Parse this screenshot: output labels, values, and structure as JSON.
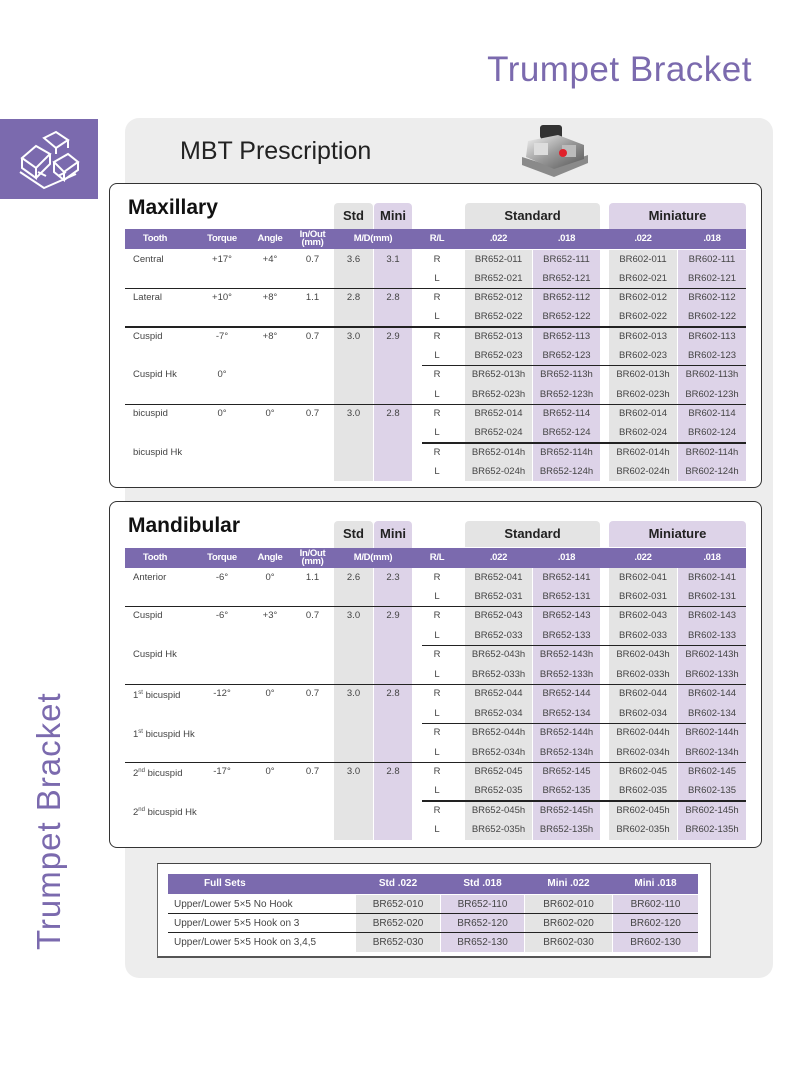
{
  "page_title": "Trumpet Bracket",
  "side_title": "Trumpet Bracket",
  "prescription_title": "MBT Prescription",
  "colors": {
    "accent": "#7b6aae",
    "std_fill": "#e4e4e4",
    "mini_fill": "#ddd3e8"
  },
  "icons": {
    "side": "bracket-outline-icon",
    "product": "bracket-photo"
  },
  "header": {
    "tooth": "Tooth",
    "torque": "Torque",
    "angle": "Angle",
    "inout": "In/Out",
    "inout_unit": "(mm)",
    "md": "M/D(mm)",
    "rl": "R/L",
    "std_tab": "Std",
    "mini_tab": "Mini",
    "standard": "Standard",
    "miniature": "Miniature",
    "codes": [
      ".022",
      ".018",
      ".022",
      ".018"
    ]
  },
  "maxillary": {
    "title": "Maxillary",
    "sections": [
      {
        "entries": [
          {
            "tooth": "Central",
            "torque": "+17°",
            "angle": "+4°",
            "inout": "0.7",
            "std": "3.6",
            "mini": "3.1",
            "rows": [
              {
                "rl": "R",
                "codes": [
                  "BR652-011",
                  "BR652-111",
                  "BR602-011",
                  "BR602-111"
                ]
              },
              {
                "rl": "L",
                "codes": [
                  "BR652-021",
                  "BR652-121",
                  "BR602-021",
                  "BR602-121"
                ]
              }
            ]
          }
        ]
      },
      {
        "entries": [
          {
            "tooth": "Lateral",
            "torque": "+10°",
            "angle": "+8°",
            "inout": "1.1",
            "std": "2.8",
            "mini": "2.8",
            "rows": [
              {
                "rl": "R",
                "codes": [
                  "BR652-012",
                  "BR652-112",
                  "BR602-012",
                  "BR602-112"
                ]
              },
              {
                "rl": "L",
                "codes": [
                  "BR652-022",
                  "BR652-122",
                  "BR602-022",
                  "BR602-122"
                ]
              }
            ]
          }
        ]
      },
      {
        "entries": [
          {
            "tooth": "Cuspid",
            "torque": "-7°",
            "angle": "+8°",
            "inout": "0.7",
            "std": "3.0",
            "mini": "2.9",
            "rows": [
              {
                "rl": "R",
                "codes": [
                  "BR652-013",
                  "BR652-113",
                  "BR602-013",
                  "BR602-113"
                ]
              },
              {
                "rl": "L",
                "codes": [
                  "BR652-023",
                  "BR652-123",
                  "BR602-023",
                  "BR602-123"
                ]
              }
            ]
          },
          {
            "tooth": "Cuspid Hk",
            "torque": "0°",
            "rows": [
              {
                "rl": "R",
                "codes": [
                  "BR652-013h",
                  "BR652-113h",
                  "BR602-013h",
                  "BR602-113h"
                ]
              },
              {
                "rl": "L",
                "codes": [
                  "BR652-023h",
                  "BR652-123h",
                  "BR602-023h",
                  "BR602-123h"
                ]
              }
            ]
          }
        ]
      },
      {
        "entries": [
          {
            "tooth": "bicuspid",
            "torque": "0°",
            "angle": "0°",
            "inout": "0.7",
            "std": "3.0",
            "mini": "2.8",
            "rows": [
              {
                "rl": "R",
                "codes": [
                  "BR652-014",
                  "BR652-114",
                  "BR602-014",
                  "BR602-114"
                ]
              },
              {
                "rl": "L",
                "codes": [
                  "BR652-024",
                  "BR652-124",
                  "BR602-024",
                  "BR602-124"
                ]
              }
            ]
          },
          {
            "tooth": "bicuspid Hk",
            "rows": [
              {
                "rl": "R",
                "codes": [
                  "BR652-014h",
                  "BR652-114h",
                  "BR602-014h",
                  "BR602-114h"
                ]
              },
              {
                "rl": "L",
                "codes": [
                  "BR652-024h",
                  "BR652-124h",
                  "BR602-024h",
                  "BR602-124h"
                ]
              }
            ]
          }
        ]
      }
    ]
  },
  "mandibular": {
    "title": "Mandibular",
    "sections": [
      {
        "entries": [
          {
            "tooth": "Anterior",
            "torque": "-6°",
            "angle": "0°",
            "inout": "1.1",
            "std": "2.6",
            "mini": "2.3",
            "rows": [
              {
                "rl": "R",
                "codes": [
                  "BR652-041",
                  "BR652-141",
                  "BR602-041",
                  "BR602-141"
                ]
              },
              {
                "rl": "L",
                "codes": [
                  "BR652-031",
                  "BR652-131",
                  "BR602-031",
                  "BR602-131"
                ]
              }
            ]
          }
        ]
      },
      {
        "entries": [
          {
            "tooth": "Cuspid",
            "torque": "-6°",
            "angle": "+3°",
            "inout": "0.7",
            "std": "3.0",
            "mini": "2.9",
            "rows": [
              {
                "rl": "R",
                "codes": [
                  "BR652-043",
                  "BR652-143",
                  "BR602-043",
                  "BR602-143"
                ]
              },
              {
                "rl": "L",
                "codes": [
                  "BR652-033",
                  "BR652-133",
                  "BR602-033",
                  "BR602-133"
                ]
              }
            ]
          },
          {
            "tooth": "Cuspid Hk",
            "rows": [
              {
                "rl": "R",
                "codes": [
                  "BR652-043h",
                  "BR652-143h",
                  "BR602-043h",
                  "BR602-143h"
                ]
              },
              {
                "rl": "L",
                "codes": [
                  "BR652-033h",
                  "BR652-133h",
                  "BR602-033h",
                  "BR602-133h"
                ]
              }
            ]
          }
        ]
      },
      {
        "entries": [
          {
            "tooth_num": "1",
            "tooth_sup": "st",
            "tooth": "bicuspid",
            "torque": "-12°",
            "angle": "0°",
            "inout": "0.7",
            "std": "3.0",
            "mini": "2.8",
            "rows": [
              {
                "rl": "R",
                "codes": [
                  "BR652-044",
                  "BR652-144",
                  "BR602-044",
                  "BR602-144"
                ]
              },
              {
                "rl": "L",
                "codes": [
                  "BR652-034",
                  "BR652-134",
                  "BR602-034",
                  "BR602-134"
                ]
              }
            ]
          },
          {
            "tooth_num": "1",
            "tooth_sup": "st",
            "tooth": "bicuspid Hk",
            "rows": [
              {
                "rl": "R",
                "codes": [
                  "BR652-044h",
                  "BR652-144h",
                  "BR602-044h",
                  "BR602-144h"
                ]
              },
              {
                "rl": "L",
                "codes": [
                  "BR652-034h",
                  "BR652-134h",
                  "BR602-034h",
                  "BR602-134h"
                ]
              }
            ]
          }
        ]
      },
      {
        "entries": [
          {
            "tooth_num": "2",
            "tooth_sup": "nd",
            "tooth": "bicuspid",
            "torque": "-17°",
            "angle": "0°",
            "inout": "0.7",
            "std": "3.0",
            "mini": "2.8",
            "rows": [
              {
                "rl": "R",
                "codes": [
                  "BR652-045",
                  "BR652-145",
                  "BR602-045",
                  "BR602-145"
                ]
              },
              {
                "rl": "L",
                "codes": [
                  "BR652-035",
                  "BR652-135",
                  "BR602-035",
                  "BR602-135"
                ]
              }
            ]
          },
          {
            "tooth_num": "2",
            "tooth_sup": "nd",
            "tooth": "bicuspid Hk",
            "rows": [
              {
                "rl": "R",
                "codes": [
                  "BR652-045h",
                  "BR652-145h",
                  "BR602-045h",
                  "BR602-145h"
                ]
              },
              {
                "rl": "L",
                "codes": [
                  "BR652-035h",
                  "BR652-135h",
                  "BR602-035h",
                  "BR602-135h"
                ]
              }
            ]
          }
        ]
      }
    ]
  },
  "full_sets": {
    "headers": [
      "Full Sets",
      "Std .022",
      "Std .018",
      "Mini .022",
      "Mini .018"
    ],
    "rows": [
      {
        "label": "Upper/Lower 5×5 No Hook",
        "codes": [
          "BR652-010",
          "BR652-110",
          "BR602-010",
          "BR602-110"
        ]
      },
      {
        "label": "Upper/Lower 5×5 Hook on 3",
        "codes": [
          "BR652-020",
          "BR652-120",
          "BR602-020",
          "BR602-120"
        ]
      },
      {
        "label": "Upper/Lower 5×5 Hook on 3,4,5",
        "codes": [
          "BR652-030",
          "BR652-130",
          "BR602-030",
          "BR602-130"
        ]
      }
    ]
  }
}
